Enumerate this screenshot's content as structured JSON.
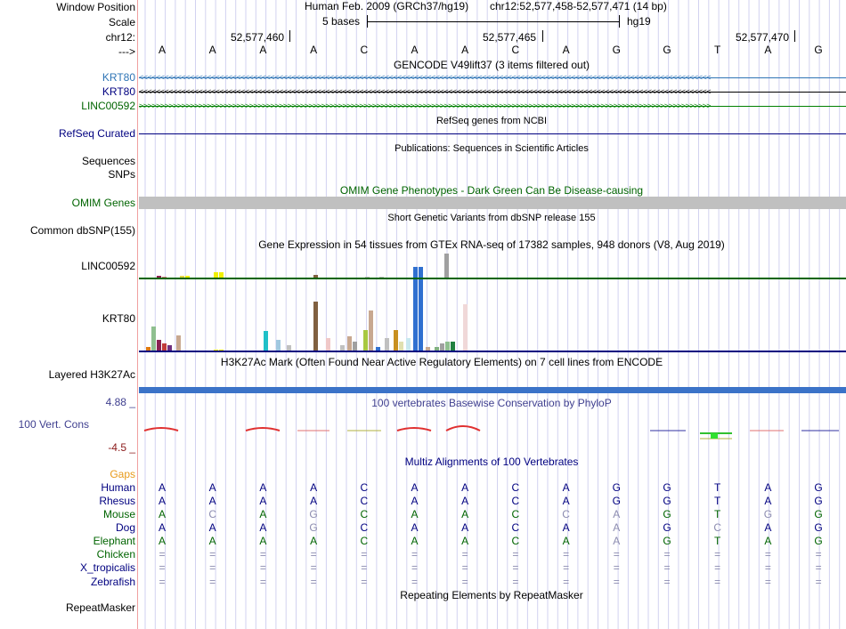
{
  "left_labels": {
    "window_position": "Window Position",
    "scale": "Scale",
    "chr": "chr12:",
    "arrow": "--->",
    "krt80_1": "KRT80",
    "krt80_2": "KRT80",
    "linc00592": "LINC00592",
    "refseq_curated": "RefSeq Curated",
    "sequences": "Sequences",
    "snps": "SNPs",
    "omim_genes": "OMIM Genes",
    "common_dbsnp": "Common dbSNP(155)",
    "gtex_linc": "LINC00592",
    "gtex_krt80": "KRT80",
    "layered_h3k27ac": "Layered H3K27Ac",
    "phylop_max": "4.88 _",
    "vert_cons": "100 Vert. Cons",
    "phylop_min": "-4.5 _",
    "gaps": "Gaps",
    "human": "Human",
    "rhesus": "Rhesus",
    "mouse": "Mouse",
    "dog": "Dog",
    "elephant": "Elephant",
    "chicken": "Chicken",
    "x_tropicalis": "X_tropicalis",
    "zebrafish": "Zebrafish",
    "repeatmasker": "RepeatMasker"
  },
  "header": {
    "assembly": "Human Feb. 2009 (GRCh37/hg19)",
    "position": "chr12:52,577,458-52,577,471 (14 bp)",
    "scale_text": "5 bases",
    "scale_db": "hg19",
    "tick_1": "52,577,460",
    "tick_2": "52,577,465",
    "tick_3": "52,577,470"
  },
  "sequence": [
    "A",
    "A",
    "A",
    "A",
    "C",
    "A",
    "A",
    "C",
    "A",
    "G",
    "G",
    "T",
    "A",
    "G"
  ],
  "track_titles": {
    "gencode": "GENCODE V49lift37 (3 items filtered out)",
    "refseq": "RefSeq genes from NCBI",
    "publications": "Publications: Sequences in Scientific Articles",
    "omim": "OMIM Gene Phenotypes - Dark Green Can Be Disease-causing",
    "dbsnp": "Short Genetic Variants from dbSNP release 155",
    "gtex": "Gene Expression in 54 tissues from GTEx RNA-seq of 17382 samples, 948 donors (V8, Aug 2019)",
    "h3k27ac": "H3K27Ac Mark (Often Found Near Active Regulatory Elements) on 7 cell lines from ENCODE",
    "phylop": "100 vertebrates Basewise Conservation by PhyloP",
    "multiz": "Multiz Alignments of 100 Vertebrates",
    "repeatmasker": "Repeating Elements by RepeatMasker"
  },
  "gene_arrows": {
    "krt80": "<<<<<<<<<<<<<<<<<<<<<<<<<<<<<<<<<<<<<<<<<<<<<<<<<<<<<<<<<<<<<<<<<<<<<<<<<<<<<<<<<<<<<<<<<<<<<<<<<<<<<<<<<<<<<<<<<<<<<<<<<<<<<<<<<<<<<<<",
    "linc": ">>>>>>>>>>>>>>>>>>>>>>>>>>>>>>>>>>>>>>>>>>>>>>>>>>>>>>>>>>>>>>>>>>>>>>>>>>>>>>>>>>>>>>>>>>>>>>>>>>>>>>>>>>>>>>>>>>>>>>>>>>>>>>>>>>>>>>>"
  },
  "alignments": {
    "rhesus": [
      "A",
      "A",
      "A",
      "A",
      "C",
      "A",
      "A",
      "C",
      "A",
      "G",
      "G",
      "T",
      "A",
      "G"
    ],
    "mouse": [
      "A",
      "C",
      "A",
      "G",
      "C",
      "A",
      "A",
      "C",
      "C",
      "A",
      "G",
      "T",
      "G",
      "G"
    ],
    "dog": [
      "A",
      "A",
      "A",
      "G",
      "C",
      "A",
      "A",
      "C",
      "A",
      "A",
      "G",
      "C",
      "A",
      "G"
    ],
    "elephant": [
      "A",
      "A",
      "A",
      "A",
      "C",
      "A",
      "A",
      "C",
      "A",
      "A",
      "G",
      "T",
      "A",
      "G"
    ],
    "chicken": [
      "=",
      "=",
      "=",
      "=",
      "=",
      "=",
      "=",
      "=",
      "=",
      "=",
      "=",
      "=",
      "=",
      "="
    ],
    "x_tropicalis": [
      "=",
      "=",
      "=",
      "=",
      "=",
      "=",
      "=",
      "=",
      "=",
      "=",
      "=",
      "=",
      "=",
      "="
    ],
    "zebrafish": [
      "=",
      "=",
      "=",
      "=",
      "=",
      "=",
      "=",
      "=",
      "=",
      "=",
      "=",
      "=",
      "=",
      "="
    ]
  },
  "colors": {
    "label_blue": "#000080",
    "label_green": "#006400",
    "gencode_blue": "#2e74b5",
    "linc_green": "#008000",
    "omim_gray": "#c0c0c0",
    "h3k27ac": "#3b73c8",
    "phylop_label": "#3f3f8f",
    "phylop_neg": "#8b1a1a",
    "gaps_orange": "#e89a1a",
    "mismatch_gray": "#8c8cb0",
    "grid": "#d2d2f0"
  }
}
